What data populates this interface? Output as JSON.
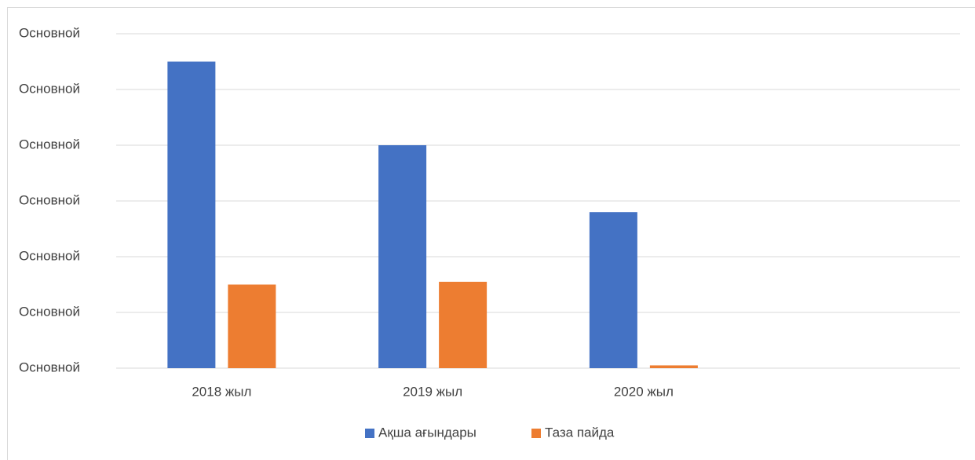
{
  "chart_data": {
    "type": "bar",
    "categories": [
      "2018 жыл",
      "2019 жыл",
      "2020 жыл",
      null
    ],
    "series": [
      {
        "name": "Ақша ағындары",
        "color": "#4472c4",
        "values": [
          5.5,
          4.0,
          2.8,
          null
        ]
      },
      {
        "name": "Таза пайда",
        "color": "#ed7d31",
        "values": [
          1.5,
          1.55,
          0.05,
          null
        ]
      }
    ],
    "ylim": [
      0,
      6
    ],
    "yticks": [
      {
        "value": 0,
        "label": "Основной"
      },
      {
        "value": 1,
        "label": "Основной"
      },
      {
        "value": 2,
        "label": "Основной"
      },
      {
        "value": 3,
        "label": "Основной"
      },
      {
        "value": 4,
        "label": "Основной"
      },
      {
        "value": 5,
        "label": "Основной"
      },
      {
        "value": 6,
        "label": "Основной"
      }
    ],
    "grid": true,
    "legend": "bottom"
  }
}
